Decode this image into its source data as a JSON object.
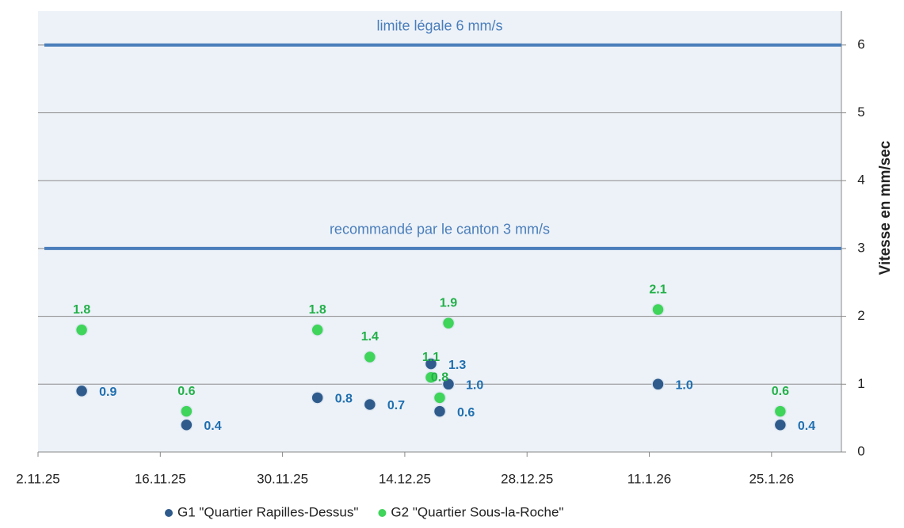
{
  "chart_data": {
    "type": "scatter",
    "xlim": [
      "2.11.25",
      "2.2.26"
    ],
    "xticks": [
      "2.11.25",
      "16.11.25",
      "30.11.25",
      "14.12.25",
      "28.12.25",
      "11.1.26",
      "25.1.26"
    ],
    "ylim": [
      0,
      6.5
    ],
    "yticks": [
      0,
      1,
      2,
      3,
      4,
      5,
      6
    ],
    "ylabel": "Vitesse en mm/sec",
    "y_axis_side": "right",
    "grid": true,
    "legend": "bottom",
    "annotations": [
      {
        "text": "limite légale 6 mm/s",
        "y": 6,
        "color": "#4a7ebb"
      },
      {
        "text": "recommandé par le canton 3 mm/s",
        "y": 3,
        "color": "#4a7ebb"
      }
    ],
    "series": [
      {
        "name": "G1 \"Quartier Rapilles-Dessus\"",
        "color": "#2f5b8c",
        "label_color": "#1f6fb0",
        "x": [
          "7.11.25",
          "19.11.25",
          "4.12.25",
          "10.12.25",
          "17.12.25",
          "18.12.25",
          "19.12.25",
          "12.1.26",
          "26.1.26"
        ],
        "values": [
          0.9,
          0.4,
          0.8,
          0.7,
          1.3,
          0.6,
          1.0,
          1.0,
          0.4
        ],
        "value_labels": [
          "0.9",
          "0.4",
          "0.8",
          "0.7",
          "1.3",
          "0.6",
          "1.0",
          "1.0",
          "0.4"
        ]
      },
      {
        "name": "G2 \"Quartier Sous-la-Roche\"",
        "color": "#3fd45a",
        "label_color": "#22b048",
        "x": [
          "7.11.25",
          "19.11.25",
          "4.12.25",
          "10.12.25",
          "17.12.25",
          "18.12.25",
          "19.12.25",
          "12.1.26",
          "26.1.26"
        ],
        "values": [
          1.8,
          0.6,
          1.8,
          1.4,
          1.1,
          0.8,
          1.9,
          2.1,
          0.6
        ],
        "value_labels": [
          "1.8",
          "0.6",
          "1.8",
          "1.4",
          "1.1",
          "0.8",
          "1.9",
          "2.1",
          "0.6"
        ]
      }
    ]
  }
}
